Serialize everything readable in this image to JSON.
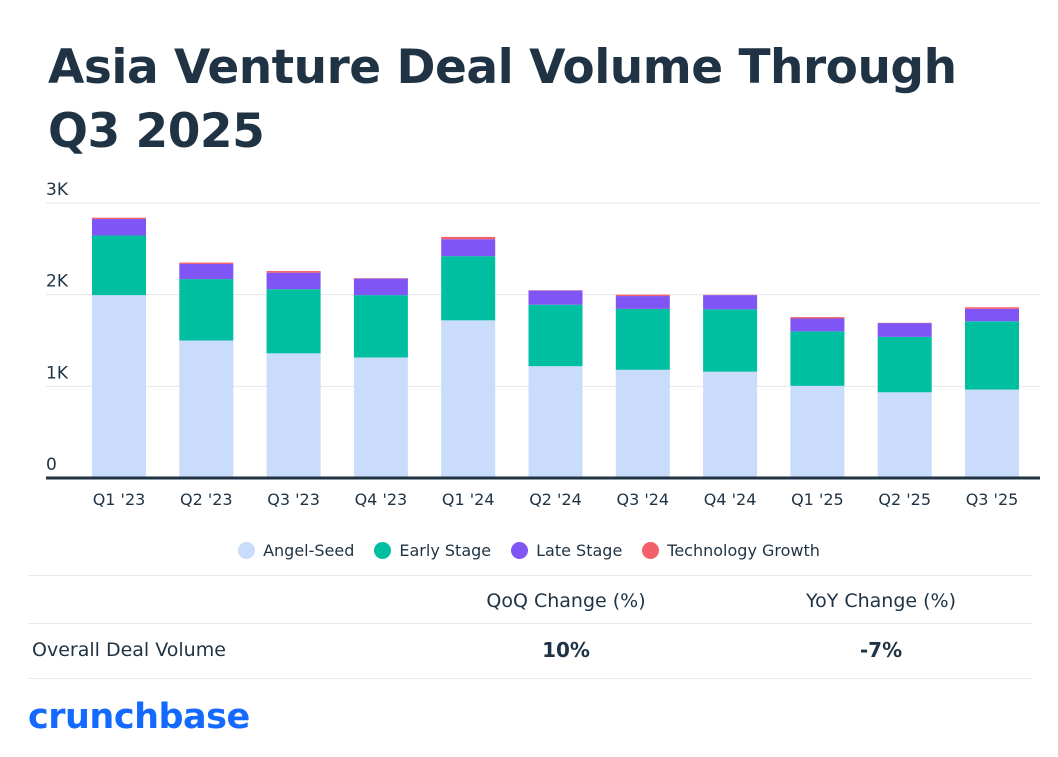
{
  "title": "Asia Venture Deal Volume Through Q3 2025",
  "chart_data": {
    "type": "bar",
    "stacked": true,
    "title": "Asia Venture Deal Volume Through Q3 2025",
    "xlabel": "",
    "ylabel": "",
    "ylim": [
      0,
      3000
    ],
    "yticks": [
      0,
      1000,
      2000,
      3000
    ],
    "ytick_labels": [
      "0",
      "1K",
      "2K",
      "3K"
    ],
    "grid": true,
    "legend_position": "bottom",
    "categories": [
      "Q1 '23",
      "Q2 '23",
      "Q3 '23",
      "Q4 '23",
      "Q1 '24",
      "Q2 '24",
      "Q3 '24",
      "Q4 '24",
      "Q1 '25",
      "Q2 '25",
      "Q3 '25"
    ],
    "series": [
      {
        "name": "Angel-Seed",
        "color": "#c9dcfb",
        "values": [
          1995,
          1500,
          1360,
          1315,
          1720,
          1220,
          1180,
          1160,
          1005,
          935,
          965
        ]
      },
      {
        "name": "Early Stage",
        "color": "#00bfa0",
        "values": [
          650,
          670,
          700,
          680,
          700,
          670,
          665,
          680,
          595,
          605,
          745
        ]
      },
      {
        "name": "Late Stage",
        "color": "#7f56f5",
        "values": [
          180,
          165,
          180,
          180,
          185,
          155,
          140,
          155,
          140,
          150,
          135
        ]
      },
      {
        "name": "Technology Growth",
        "color": "#f2606a",
        "values": [
          15,
          15,
          18,
          5,
          25,
          3,
          15,
          3,
          15,
          3,
          18
        ]
      }
    ]
  },
  "table": {
    "headers": [
      "QoQ Change (%)",
      "YoY Change (%)"
    ],
    "row_label": "Overall Deal Volume",
    "values": [
      "10%",
      "-7%"
    ]
  },
  "logo": "crunchbase"
}
